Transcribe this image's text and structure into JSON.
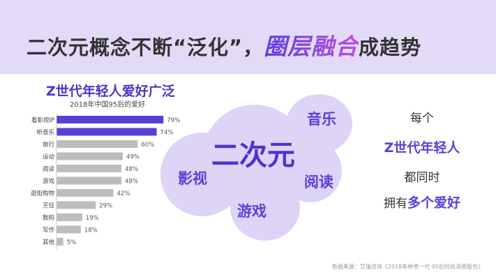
{
  "header": {
    "title_prefix": "二次元概念不断“泛化”，",
    "title_highlight": "圈层融合",
    "title_suffix": "成趋势"
  },
  "chart_data": {
    "type": "bar",
    "orientation": "horizontal",
    "title": "Z世代年轻人爱好广泛",
    "subtitle": "2018年中国95后的爱好",
    "categories": [
      "看影视IP",
      "听音乐",
      "旅行",
      "运动",
      "阅读",
      "游戏",
      "逛街购物",
      "烹饪",
      "数码",
      "写作",
      "其他"
    ],
    "values": [
      79,
      74,
      60,
      49,
      48,
      48,
      42,
      29,
      19,
      18,
      5
    ],
    "value_labels": [
      "79%",
      "74%",
      "60%",
      "49%",
      "48%",
      "48%",
      "42%",
      "29%",
      "19%",
      "18%",
      "5%"
    ],
    "highlight_color": "#5a3fd6",
    "base_color": "#bdbdbd",
    "highlighted_count": 2
  },
  "cloud": {
    "center": "二次元",
    "words": [
      "音乐",
      "影视",
      "阅读",
      "游戏"
    ]
  },
  "right_text": {
    "line1": "每个",
    "line2": "Z世代年轻人",
    "line3": "都同时",
    "line4_a": "拥有",
    "line4_b": "多个爱好"
  },
  "source": "数据来源：艾瑞咨询《2018年种草一代·95后时尚消费报告》"
}
